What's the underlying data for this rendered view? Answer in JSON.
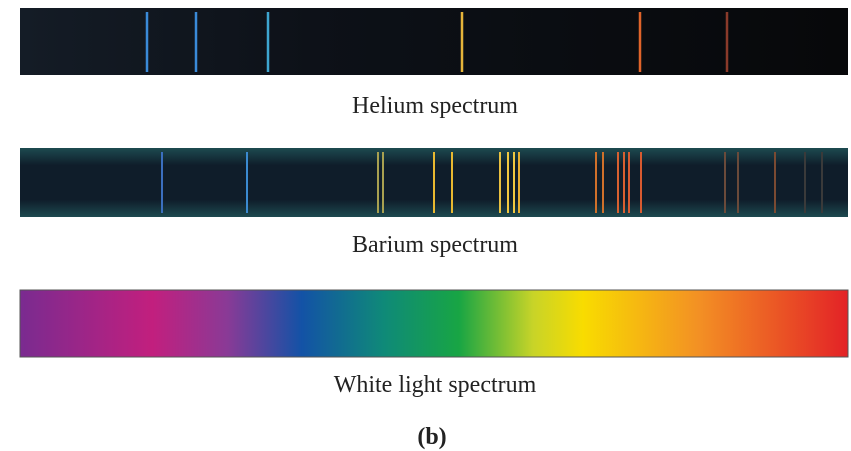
{
  "panels": [
    {
      "label": "Helium spectrum"
    },
    {
      "label": "Barium spectrum"
    },
    {
      "label": "White light spectrum"
    }
  ],
  "caption": "(b)"
}
